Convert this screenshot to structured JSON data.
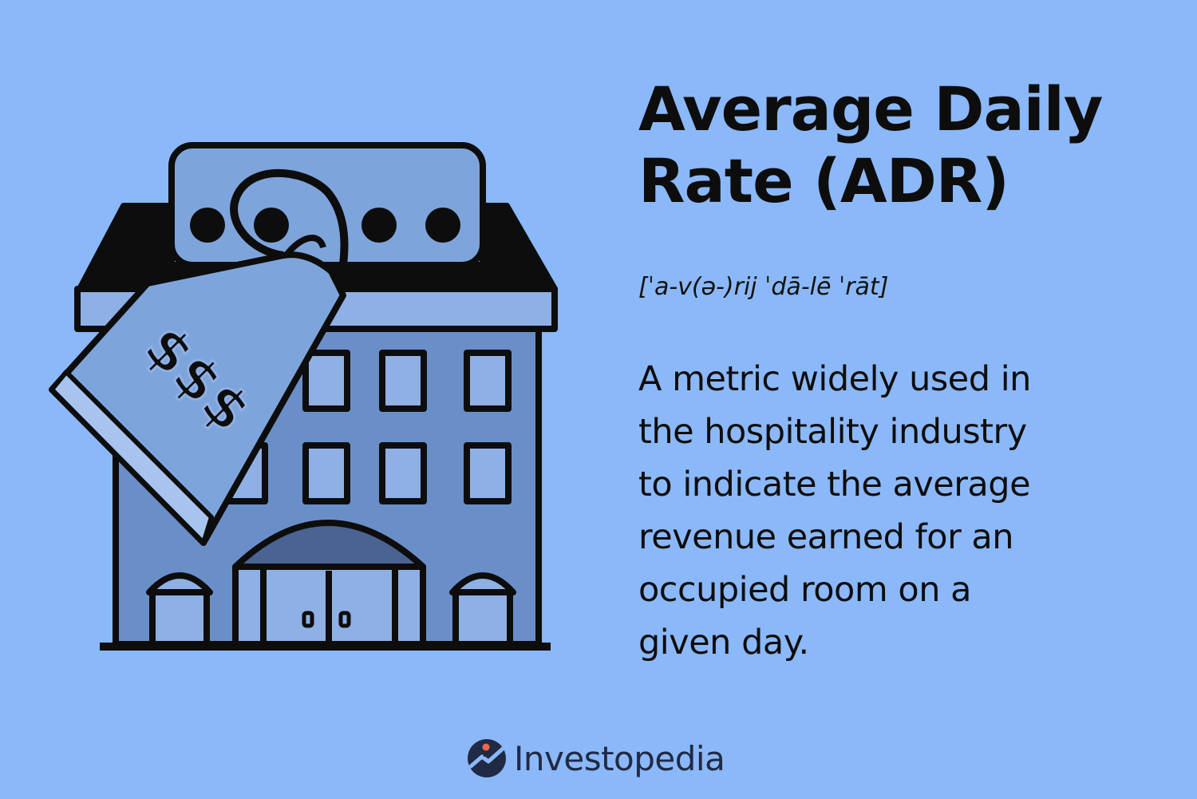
{
  "illustration": {
    "icon": "hotel-building-with-price-tag-icon",
    "tag_text": "$$$"
  },
  "title": {
    "line1": "Average Daily",
    "line2": "Rate (ADR)"
  },
  "pronunciation": "[ˈa-v(ə-)rij ˈdā-lē ˈrāt]",
  "definition": {
    "lines": [
      "A metric widely used in",
      "the hospitality industry",
      "to indicate the average",
      "revenue earned for an",
      "occupied room on a",
      "given day."
    ]
  },
  "brand": {
    "name": "Investopedia",
    "icon": "investopedia-logo-icon"
  },
  "colors": {
    "background": "#8bb8f8",
    "building": "#6a8fc8",
    "building_light": "#8fb0e4",
    "outline": "#0d0d0d",
    "brand_text": "#202a44",
    "brand_accent": "#ee6a4b"
  }
}
